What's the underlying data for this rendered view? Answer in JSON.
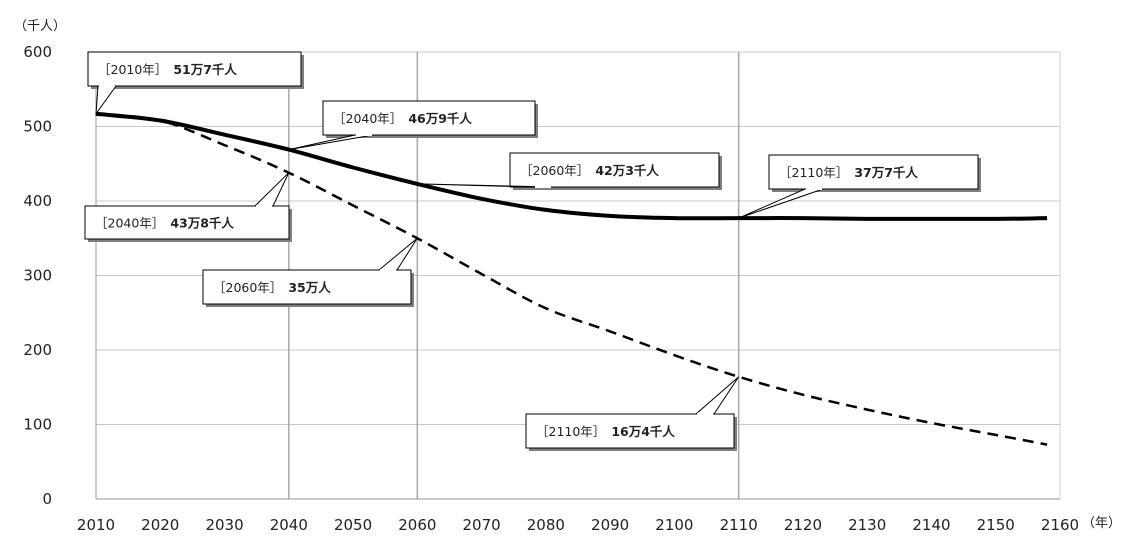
{
  "chart_data": {
    "type": "line",
    "y_unit_label": "（千人）",
    "x_unit_label": "（年）",
    "ylim": [
      0,
      600
    ],
    "y_ticks": [
      0,
      100,
      200,
      300,
      400,
      500,
      600
    ],
    "xlim": [
      2010,
      2160
    ],
    "x_ticks": [
      2010,
      2020,
      2030,
      2040,
      2050,
      2060,
      2070,
      2080,
      2090,
      2100,
      2110,
      2120,
      2130,
      2140,
      2150,
      2160
    ],
    "grid": {
      "horizontal": true,
      "vertical_at": [
        2040,
        2060,
        2110
      ]
    },
    "series": [
      {
        "style": "solid",
        "color": "#000000",
        "x": [
          2010,
          2020,
          2030,
          2040,
          2050,
          2060,
          2070,
          2080,
          2090,
          2100,
          2110,
          2120,
          2130,
          2140,
          2150,
          2158
        ],
        "y": [
          517,
          508,
          489,
          469,
          445,
          423,
          403,
          388,
          380,
          377,
          377,
          377,
          376,
          376,
          376,
          377
        ]
      },
      {
        "style": "dashed",
        "color": "#000000",
        "x": [
          2010,
          2020,
          2030,
          2040,
          2050,
          2060,
          2070,
          2080,
          2090,
          2100,
          2110,
          2120,
          2130,
          2140,
          2150,
          2158
        ],
        "y": [
          517,
          508,
          475,
          438,
          394,
          350,
          302,
          256,
          225,
          193,
          164,
          140,
          120,
          102,
          86,
          73
        ]
      }
    ],
    "annotations": [
      {
        "series": 0,
        "x": 2010,
        "y": 517,
        "year": "［2010年］",
        "value": "51万7千人"
      },
      {
        "series": 0,
        "x": 2040,
        "y": 469,
        "year": "［2040年］",
        "value": "46万9千人"
      },
      {
        "series": 0,
        "x": 2060,
        "y": 423,
        "year": "［2060年］",
        "value": "42万3千人"
      },
      {
        "series": 0,
        "x": 2110,
        "y": 377,
        "year": "［2110年］",
        "value": "37万7千人"
      },
      {
        "series": 1,
        "x": 2040,
        "y": 438,
        "year": "［2040年］",
        "value": "43万8千人"
      },
      {
        "series": 1,
        "x": 2060,
        "y": 350,
        "year": "［2060年］",
        "value": "35万人"
      },
      {
        "series": 1,
        "x": 2110,
        "y": 164,
        "year": "［2110年］",
        "value": "16万4千人"
      }
    ]
  }
}
